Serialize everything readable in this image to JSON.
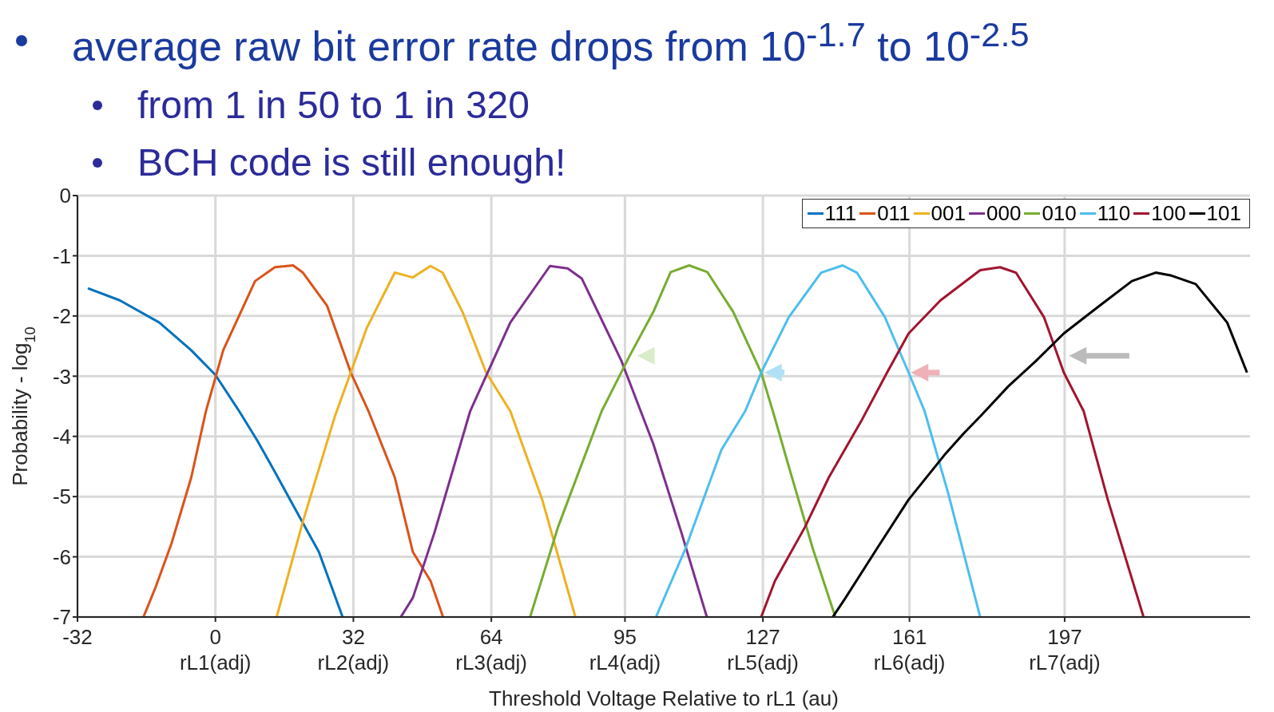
{
  "chart_data": {
    "type": "line",
    "xlabel": "Threshold Voltage Relative to rL1 (au)",
    "ylabel": "Probability - log$_{10}$",
    "annotations": [
      "average raw bit error rate drops from 10$^{-1.7}$ to 10$^{-2.5}$",
      "from 1 in 50 to 1 in 320",
      "BCH code is still enough!",
      "rL1(adj)",
      "rL2(adj)",
      "rL3(adj)",
      "rL4(adj)",
      "rL5(adj)",
      "rL6(adj)",
      "rL7(adj)"
    ],
    "xlim": [
      -32,
      240
    ],
    "xticks": [
      -32,
      0,
      32,
      64,
      95,
      127,
      161,
      197
    ],
    "ylim": [
      -7,
      0
    ],
    "yticks": [
      -7,
      -6,
      -5,
      -4,
      -3,
      -2,
      -1,
      0
    ],
    "grid": true,
    "legend": "top right",
    "series": [
      {
        "name": "111",
        "color": "#0072bd",
        "x": [
          -29.6,
          -22.2,
          -13,
          -5.6,
          0,
          5.5,
          9.8,
          13.8,
          18,
          24,
          29.5
        ],
        "values": [
          -1.54,
          -1.74,
          -2.11,
          -2.57,
          -2.98,
          -3.58,
          -4.08,
          -4.59,
          -5.14,
          -5.92,
          -7
        ]
      },
      {
        "name": "011",
        "color": "#d95319",
        "x": [
          -16.7,
          -13.9,
          -10.2,
          -5.6,
          -2.2,
          1.8,
          9.2,
          13.8,
          18,
          20.3,
          25.9,
          31.4,
          35.5,
          41.6,
          45.8,
          49.9,
          52.8
        ],
        "values": [
          -7,
          -6.51,
          -5.78,
          -4.68,
          -3.58,
          -2.57,
          -1.42,
          -1.19,
          -1.16,
          -1.28,
          -1.83,
          -2.94,
          -3.58,
          -4.68,
          -5.92,
          -6.4,
          -7
        ]
      },
      {
        "name": "001",
        "color": "#edb120",
        "x": [
          14.2,
          20.3,
          27.7,
          35.1,
          41.6,
          45.8,
          49.9,
          52.7,
          57.3,
          62.8,
          68.4,
          75.8,
          83.5
        ],
        "values": [
          -7,
          -5.41,
          -3.67,
          -2.2,
          -1.28,
          -1.36,
          -1.17,
          -1.28,
          -1.93,
          -2.94,
          -3.58,
          -5.05,
          -7
        ]
      },
      {
        "name": "000",
        "color": "#7e2f8e",
        "x": [
          43,
          45.8,
          50.8,
          59.1,
          68.4,
          77.6,
          81.7,
          85,
          94.2,
          101.6,
          108.1,
          114
        ],
        "values": [
          -7,
          -6.68,
          -5.6,
          -3.58,
          -2.11,
          -1.17,
          -1.21,
          -1.38,
          -2.75,
          -4.13,
          -5.6,
          -7
        ]
      },
      {
        "name": "010",
        "color": "#77ac30",
        "x": [
          73,
          79.5,
          89.6,
          96.1,
          101.6,
          105.6,
          109.9,
          114.1,
          120.1,
          126.6,
          129.3,
          133,
          138.6,
          143.8
        ],
        "values": [
          -7,
          -5.5,
          -3.58,
          -2.66,
          -1.93,
          -1.27,
          -1.16,
          -1.27,
          -1.93,
          -2.94,
          -3.58,
          -4.5,
          -5.87,
          -7
        ]
      },
      {
        "name": "110",
        "color": "#4dbeee",
        "x": [
          102.2,
          109,
          117.4,
          122.9,
          126.6,
          133,
          140.5,
          145.5,
          148.8,
          155.3,
          160.8,
          164.5,
          170,
          177.4
        ],
        "values": [
          -7,
          -5.87,
          -4.22,
          -3.58,
          -2.94,
          -2.02,
          -1.28,
          -1.16,
          -1.28,
          -2.02,
          -2.94,
          -3.58,
          -4.95,
          -7
        ]
      },
      {
        "name": "100",
        "color": "#a2142f",
        "x": [
          126.6,
          129.8,
          136.8,
          142.3,
          149.7,
          155.8,
          160.8,
          168.2,
          177.4,
          182,
          185.7,
          192.2,
          196.8,
          201.4,
          207,
          215.3
        ],
        "values": [
          -7,
          -6.4,
          -5.5,
          -4.68,
          -3.76,
          -2.94,
          -2.29,
          -1.74,
          -1.24,
          -1.19,
          -1.28,
          -2.02,
          -2.94,
          -3.58,
          -5.05,
          -7
        ]
      },
      {
        "name": "101",
        "color": "#000000",
        "x": [
          143.2,
          146,
          153.4,
          160.8,
          169.1,
          173.7,
          177.4,
          183.9,
          190.3,
          196.8,
          205.1,
          212.6,
          218.1,
          221.8,
          227.4,
          234.7,
          239.3
        ],
        "values": [
          -7,
          -6.7,
          -5.87,
          -5.05,
          -4.31,
          -3.94,
          -3.67,
          -3.17,
          -2.75,
          -2.29,
          -1.83,
          -1.42,
          -1.28,
          -1.33,
          -1.47,
          -2.11,
          -2.94
        ]
      }
    ]
  }
}
